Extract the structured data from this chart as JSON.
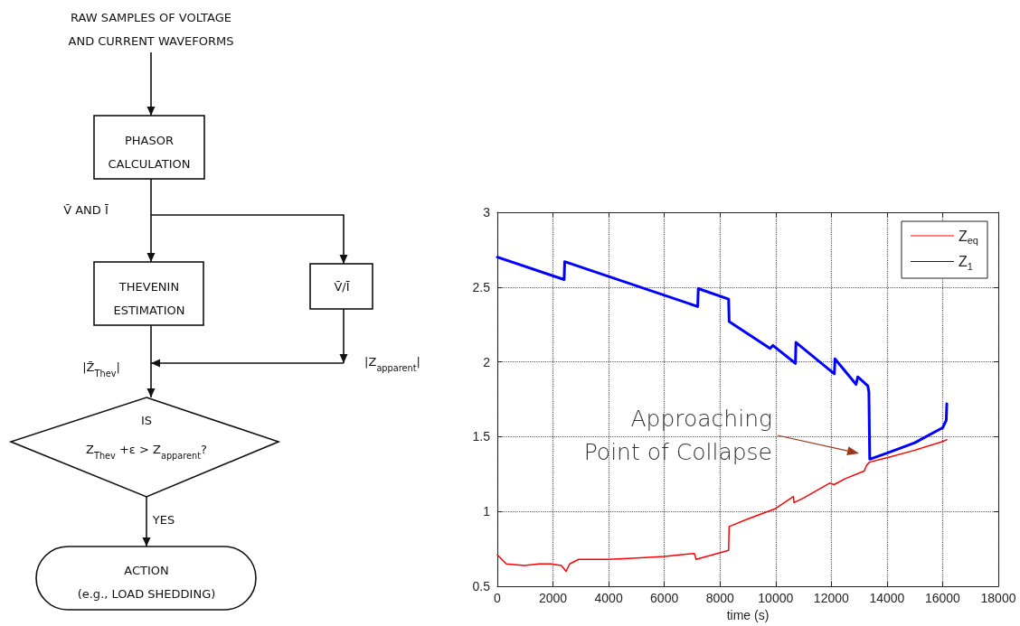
{
  "chart_data": [
    {
      "type": "other",
      "annotations": [
        "RAW SAMPLES OF VOLTAGE\nAND CURRENT WAVEFORMS",
        "PHASOR\nCALCULATION",
        "V̄ AND Ī",
        "THEVENIN\nESTIMATION",
        "V̄/Ī",
        "|Z̄$_{Thev}$|",
        "|Z$_{apparent}$|",
        "IS\nZ$_{Thev}$ +ε > Z$_{apparent}$?",
        "YES",
        "ACTION\n(e.g., LOAD SHEDDING)"
      ]
    },
    {
      "type": "line",
      "xlabel": "time (s)",
      "xlim": [
        0,
        18000
      ],
      "xticks": [
        0,
        2000,
        4000,
        6000,
        8000,
        10000,
        12000,
        14000,
        16000,
        18000
      ],
      "ylim": [
        0.5,
        3
      ],
      "yticks": [
        0.5,
        1,
        1.5,
        2,
        2.5,
        3
      ],
      "grid": true,
      "legend": "top right",
      "marker": "none",
      "line_style": "solid",
      "series": [
        {
          "name": "Z$_{eq}$",
          "color": "#ff0000",
          "x": [
            0,
            320,
            970,
            1500,
            1920,
            2300,
            2470,
            2600,
            2920,
            4000,
            5000,
            6000,
            7080,
            7140,
            8310,
            8330,
            9000,
            10000,
            10640,
            10660,
            11000,
            11940,
            12100,
            12500,
            13180,
            13270,
            13370,
            14000,
            15000,
            16030,
            16150
          ],
          "values": [
            0.71,
            0.65,
            0.64,
            0.65,
            0.65,
            0.64,
            0.6,
            0.65,
            0.68,
            0.68,
            0.69,
            0.7,
            0.72,
            0.68,
            0.74,
            0.9,
            0.95,
            1.02,
            1.1,
            1.06,
            1.09,
            1.19,
            1.18,
            1.22,
            1.27,
            1.31,
            1.33,
            1.36,
            1.41,
            1.47,
            1.48
          ]
        },
        {
          "name": "Z$_{1}$",
          "color": "#0000ff",
          "x": [
            0,
            2400,
            2420,
            7200,
            7220,
            8310,
            8330,
            9800,
            9900,
            10710,
            10730,
            12110,
            12130,
            12890,
            12950,
            13310,
            13350,
            13380,
            14000,
            15000,
            16000,
            16130,
            16150
          ],
          "values": [
            2.7,
            2.55,
            2.67,
            2.37,
            2.49,
            2.42,
            2.27,
            2.09,
            2.11,
            1.99,
            2.13,
            1.92,
            2.02,
            1.85,
            1.9,
            1.84,
            1.8,
            1.35,
            1.39,
            1.46,
            1.56,
            1.61,
            1.72
          ]
        }
      ],
      "annotations": [
        "Approaching\nPoint of Collapse"
      ]
    }
  ]
}
